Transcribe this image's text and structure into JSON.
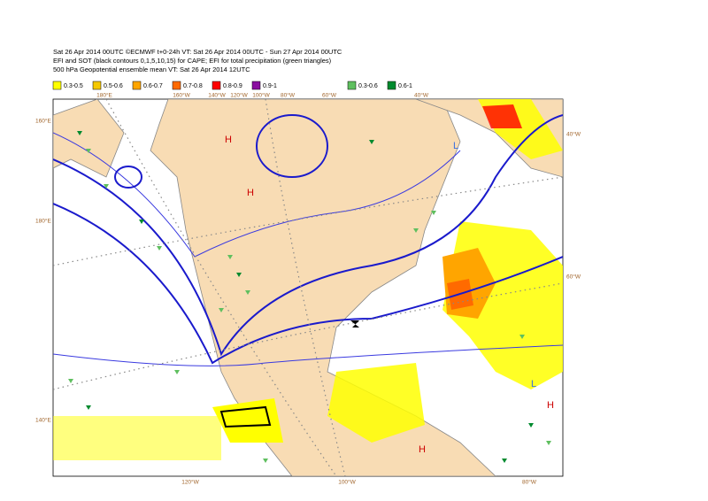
{
  "header": {
    "lines": [
      "Sat 26 Apr 2014 00UTC ©ECMWF t+0-24h  VT: Sat 26 Apr 2014 00UTC - Sun 27 Apr 2014 00UTC",
      "EFI and SOT (black contours 0,1,5,10,15) for CAPE; EFI for total precipitation (green triangles)",
      "500 hPa Geopotential ensemble mean VT: Sat 26 Apr 2014 12UTC"
    ]
  },
  "legend": {
    "items": [
      {
        "label": "0.3-0.5",
        "color": "#ffff00"
      },
      {
        "label": "0.5-0.6",
        "color": "#f5c800"
      },
      {
        "label": "0.6-0.7",
        "color": "#ffa500"
      },
      {
        "label": "0.7-0.8",
        "color": "#ff6a00"
      },
      {
        "label": "0.8-0.9",
        "color": "#ff0000"
      },
      {
        "label": "0.9-1",
        "color": "#8a0fa0"
      },
      {
        "label": "0.3-0.6",
        "color": "#5fbf5f"
      },
      {
        "label": "0.6-1",
        "color": "#008a2e"
      }
    ]
  },
  "labels": {
    "top": [
      "180°E",
      "160°W",
      "140°W",
      "120°W",
      "100°W",
      "80°W",
      "60°W",
      "40°W"
    ],
    "left": [
      "160°E",
      "180°E",
      "140°E"
    ],
    "bottom": [
      "120°W",
      "100°W",
      "80°W"
    ],
    "right": [
      "40°W",
      "60°W"
    ]
  },
  "annotations": [
    "H",
    "H",
    "H",
    "H",
    "L",
    "L"
  ]
}
